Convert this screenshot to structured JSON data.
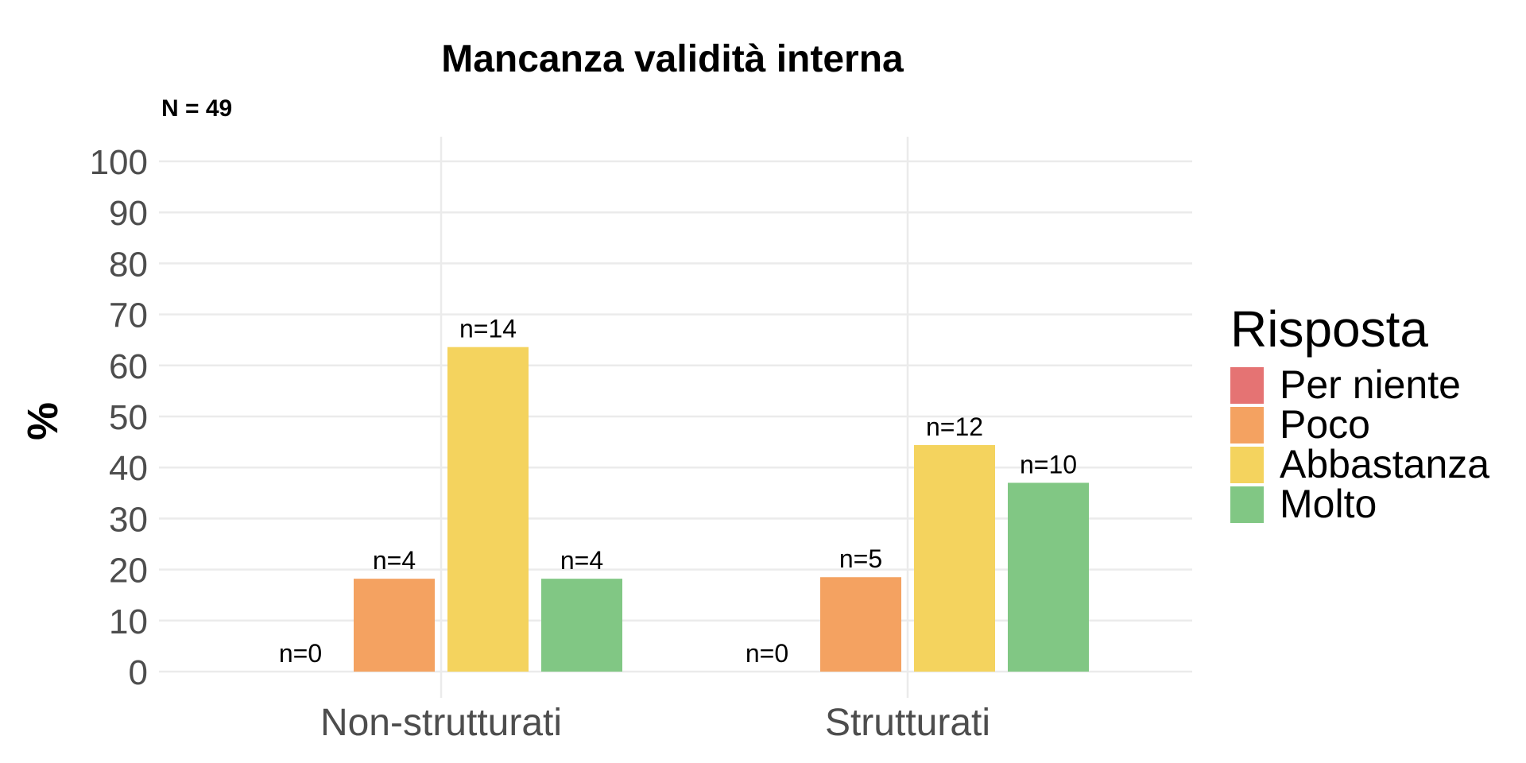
{
  "chart_data": {
    "type": "bar",
    "title": "Mancanza validità interna",
    "subtitle": "N = 49",
    "xlabel": "",
    "ylabel": "%",
    "ylim": [
      0,
      100
    ],
    "yticks": [
      0,
      10,
      20,
      30,
      40,
      50,
      60,
      70,
      80,
      90,
      100
    ],
    "grid": true,
    "legend_position": "right",
    "legend_title": "Risposta",
    "categories": [
      "Non-strutturati",
      "Strutturati"
    ],
    "series": [
      {
        "name": "Per niente",
        "color": "#E57373",
        "values": [
          0,
          0
        ],
        "labels": [
          "n=0",
          "n=0"
        ]
      },
      {
        "name": "Poco",
        "color": "#F4A261",
        "values": [
          18.2,
          18.5
        ],
        "labels": [
          "n=4",
          "n=5"
        ]
      },
      {
        "name": "Abbastanza",
        "color": "#F4D35E",
        "values": [
          63.6,
          44.4
        ],
        "labels": [
          "n=14",
          "n=12"
        ]
      },
      {
        "name": "Molto",
        "color": "#81C784",
        "values": [
          18.2,
          37.0
        ],
        "labels": [
          "n=4",
          "n=10"
        ]
      }
    ]
  }
}
